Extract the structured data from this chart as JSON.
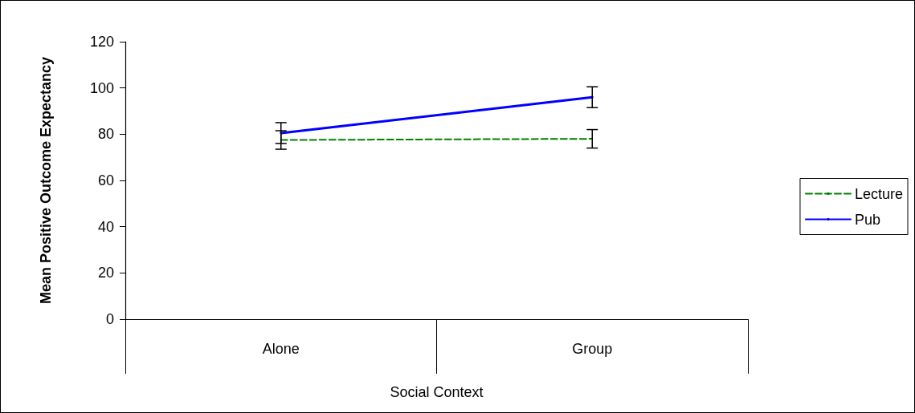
{
  "chart_data": {
    "type": "line",
    "xlabel": "Social Context",
    "ylabel": "Mean Positive Outcome Expectancy",
    "categories": [
      "Alone",
      "Group"
    ],
    "series": [
      {
        "name": "Lecture",
        "color": "#008000",
        "line_style": "dashed",
        "values": [
          77.5,
          78
        ],
        "errors": [
          4,
          4
        ]
      },
      {
        "name": "Pub",
        "color": "#0000ff",
        "line_style": "solid",
        "values": [
          80.5,
          96
        ],
        "errors": [
          4.5,
          4.5
        ]
      }
    ],
    "ylim": [
      0,
      120
    ],
    "yticks": [
      0,
      20,
      40,
      60,
      80,
      100,
      120
    ],
    "grid": false,
    "legend": "right",
    "marker": "none"
  }
}
